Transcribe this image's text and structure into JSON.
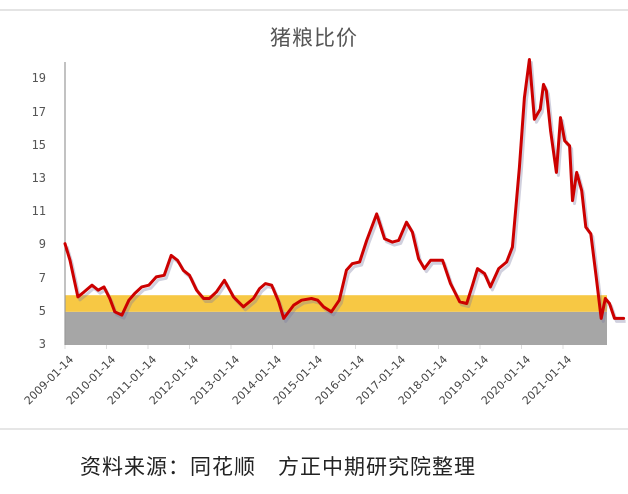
{
  "chart": {
    "title": "猪粮比价",
    "source_note": "资料来源：同花顺　方正中期研究院整理"
  },
  "colors": {
    "line": "#cc0000",
    "band_yellow": "#f7c844",
    "band_gray": "#a6a6a6",
    "axis": "#999999"
  },
  "chart_data": {
    "type": "line",
    "title": "猪粮比价",
    "xlabel": "",
    "ylabel": "",
    "ylim": [
      3,
      20
    ],
    "yticks": [
      3,
      5,
      7,
      9,
      11,
      13,
      15,
      17,
      19
    ],
    "xtick_labels": [
      "2009-01-14",
      "2010-01-14",
      "2011-01-14",
      "2012-01-14",
      "2013-01-14",
      "2014-01-14",
      "2015-01-14",
      "2016-01-14",
      "2017-01-14",
      "2018-01-14",
      "2019-01-14",
      "2020-01-14",
      "2021-01-14"
    ],
    "grid": false,
    "legend": "none",
    "bands": [
      {
        "name": "gray-zone",
        "from": 3,
        "to": 5,
        "color": "#a6a6a6"
      },
      {
        "name": "yellow-zone",
        "from": 5,
        "to": 6,
        "color": "#f7c844"
      }
    ],
    "series": [
      {
        "name": "猪粮比价",
        "x_year_fraction": [
          2009.0,
          2009.12,
          2009.31,
          2009.46,
          2009.65,
          2009.8,
          2009.94,
          2010.08,
          2010.2,
          2010.37,
          2010.54,
          2010.68,
          2010.85,
          2011.02,
          2011.2,
          2011.39,
          2011.56,
          2011.71,
          2011.85,
          2012.0,
          2012.17,
          2012.34,
          2012.48,
          2012.65,
          2012.84,
          2013.06,
          2013.3,
          2013.54,
          2013.69,
          2013.83,
          2013.98,
          2014.15,
          2014.27,
          2014.51,
          2014.7,
          2014.94,
          2015.09,
          2015.23,
          2015.42,
          2015.61,
          2015.78,
          2015.92,
          2016.1,
          2016.27,
          2016.51,
          2016.7,
          2016.89,
          2017.04,
          2017.23,
          2017.37,
          2017.52,
          2017.66,
          2017.81,
          2017.9,
          2018.1,
          2018.29,
          2018.51,
          2018.68,
          2018.82,
          2018.94,
          2019.11,
          2019.25,
          2019.45,
          2019.64,
          2019.78,
          2019.95,
          2020.07,
          2020.19,
          2020.31,
          2020.45,
          2020.53,
          2020.6,
          2020.7,
          2020.84,
          2020.94,
          2021.04,
          2021.16,
          2021.23,
          2021.33,
          2021.45,
          2021.55,
          2021.67,
          2021.8,
          2021.92,
          2022.02,
          2022.12,
          2022.24,
          2022.34,
          2022.46
        ],
        "values": [
          9.1,
          8.1,
          5.9,
          6.2,
          6.6,
          6.3,
          6.5,
          5.8,
          5.0,
          4.8,
          5.7,
          6.1,
          6.5,
          6.6,
          7.1,
          7.2,
          8.4,
          8.1,
          7.5,
          7.2,
          6.3,
          5.8,
          5.8,
          6.2,
          6.9,
          5.9,
          5.3,
          5.8,
          6.4,
          6.7,
          6.6,
          5.6,
          4.6,
          5.4,
          5.7,
          5.8,
          5.7,
          5.3,
          5.0,
          5.7,
          7.5,
          7.9,
          8.0,
          9.3,
          10.9,
          9.4,
          9.2,
          9.3,
          10.4,
          9.8,
          8.2,
          7.6,
          8.1,
          8.1,
          8.1,
          6.7,
          5.6,
          5.5,
          6.6,
          7.6,
          7.3,
          6.5,
          7.6,
          8.0,
          8.9,
          13.7,
          17.9,
          20.2,
          16.6,
          17.2,
          18.7,
          18.3,
          15.9,
          13.4,
          16.7,
          15.3,
          15.0,
          11.7,
          13.4,
          12.3,
          10.1,
          9.7,
          7.1,
          4.6,
          5.8,
          5.5,
          4.6,
          4.6,
          4.6
        ]
      }
    ]
  }
}
